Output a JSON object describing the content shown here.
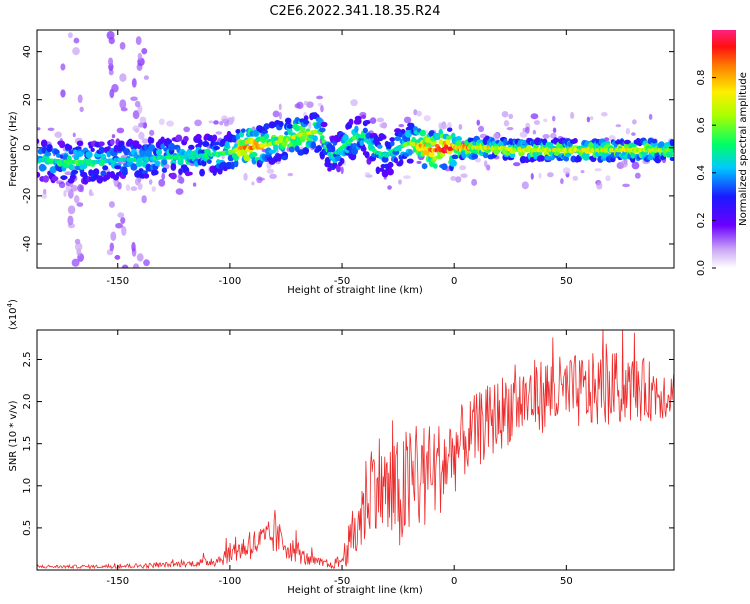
{
  "title": "C2E6.2022.341.18.35.R24",
  "chart_data": [
    {
      "type": "heatmap",
      "xlabel": "Height of straight line (km)",
      "ylabel": "Frequency (Hz)",
      "xlim": [
        -186,
        98
      ],
      "ylim": [
        -50,
        49
      ],
      "x_ticks": [
        -150,
        -100,
        -50,
        0,
        50
      ],
      "y_ticks": [
        -40,
        -20,
        0,
        20,
        40
      ],
      "colorbar": {
        "label": "Normalized spectral amplitude",
        "range": [
          0,
          1
        ],
        "ticks": [
          0.0,
          0.2,
          0.4,
          0.6,
          0.8
        ],
        "tick_labels": [
          "0.0",
          "0.2",
          "0.4",
          "0.6",
          "0.8"
        ],
        "colormap": "rainbow"
      },
      "ridge": {
        "x": [
          -186,
          -170,
          -160,
          -150,
          -140,
          -130,
          -120,
          -110,
          -100,
          -95,
          -90,
          -85,
          -80,
          -75,
          -70,
          -65,
          -60,
          -55,
          -50,
          -45,
          -40,
          -35,
          -30,
          -25,
          -20,
          -15,
          -10,
          -5,
          0,
          10,
          20,
          30,
          40,
          50,
          60,
          70,
          80,
          90,
          98
        ],
        "y": [
          -5,
          -6,
          -6,
          -5,
          -5,
          -4,
          -4,
          -3,
          -2,
          0,
          0,
          1,
          2,
          3,
          5,
          6,
          7,
          -4,
          0,
          4,
          5,
          -2,
          -3,
          0,
          2,
          1,
          -1,
          -1,
          0,
          0,
          0,
          -1,
          -1,
          -1,
          -1,
          -1,
          -1,
          -1,
          -1
        ],
        "amplitude": [
          0.45,
          0.55,
          0.5,
          0.45,
          0.5,
          0.5,
          0.5,
          0.5,
          0.55,
          0.8,
          0.9,
          0.7,
          0.6,
          0.65,
          0.7,
          0.7,
          0.6,
          0.45,
          0.5,
          0.55,
          0.5,
          0.5,
          0.5,
          0.5,
          0.6,
          0.8,
          0.85,
          0.95,
          0.9,
          0.75,
          0.7,
          0.7,
          0.7,
          0.72,
          0.72,
          0.72,
          0.7,
          0.7,
          0.6
        ]
      }
    },
    {
      "type": "line",
      "xlabel": "Height of straight line (km)",
      "ylabel": "SNR (10 * v/v)",
      "multiplier_label": "(x10",
      "multiplier_exp": "4",
      "multiplier_close": ")",
      "xlim": [
        -186,
        98
      ],
      "ylim": [
        0,
        2.85
      ],
      "x_ticks": [
        -150,
        -100,
        -50,
        0,
        50
      ],
      "y_ticks": [
        0.5,
        1.0,
        1.5,
        2.0,
        2.5
      ],
      "y_tick_labels": [
        "0.5",
        "1.0",
        "1.5",
        "2.0",
        "2.5"
      ],
      "color": "#ee2a2a",
      "envelope": {
        "x": [
          -186,
          -160,
          -140,
          -130,
          -115,
          -105,
          -100,
          -95,
          -90,
          -85,
          -80,
          -75,
          -70,
          -65,
          -55,
          -50,
          -45,
          -40,
          -38,
          -35,
          -30,
          -25,
          -20,
          -15,
          -10,
          -5,
          0,
          5,
          10,
          15,
          20,
          25,
          30,
          35,
          40,
          45,
          50,
          60,
          70,
          80,
          90,
          98
        ],
        "y": [
          0.04,
          0.04,
          0.05,
          0.06,
          0.08,
          0.12,
          0.2,
          0.25,
          0.3,
          0.35,
          0.4,
          0.3,
          0.2,
          0.12,
          0.05,
          0.12,
          0.4,
          0.75,
          1.0,
          1.1,
          0.9,
          0.85,
          1.0,
          1.1,
          1.15,
          1.25,
          1.4,
          1.55,
          1.65,
          1.75,
          1.85,
          1.95,
          2.0,
          2.05,
          2.08,
          2.1,
          2.1,
          2.12,
          2.15,
          2.15,
          2.12,
          2.1
        ],
        "spread": [
          0.02,
          0.02,
          0.03,
          0.03,
          0.04,
          0.08,
          0.12,
          0.15,
          0.18,
          0.2,
          0.22,
          0.18,
          0.12,
          0.08,
          0.04,
          0.1,
          0.35,
          0.55,
          0.6,
          0.6,
          0.65,
          0.7,
          0.75,
          0.7,
          0.6,
          0.55,
          0.5,
          0.45,
          0.45,
          0.45,
          0.45,
          0.45,
          0.45,
          0.45,
          0.45,
          0.45,
          0.45,
          0.45,
          0.45,
          0.4,
          0.35,
          0.3
        ]
      }
    }
  ]
}
